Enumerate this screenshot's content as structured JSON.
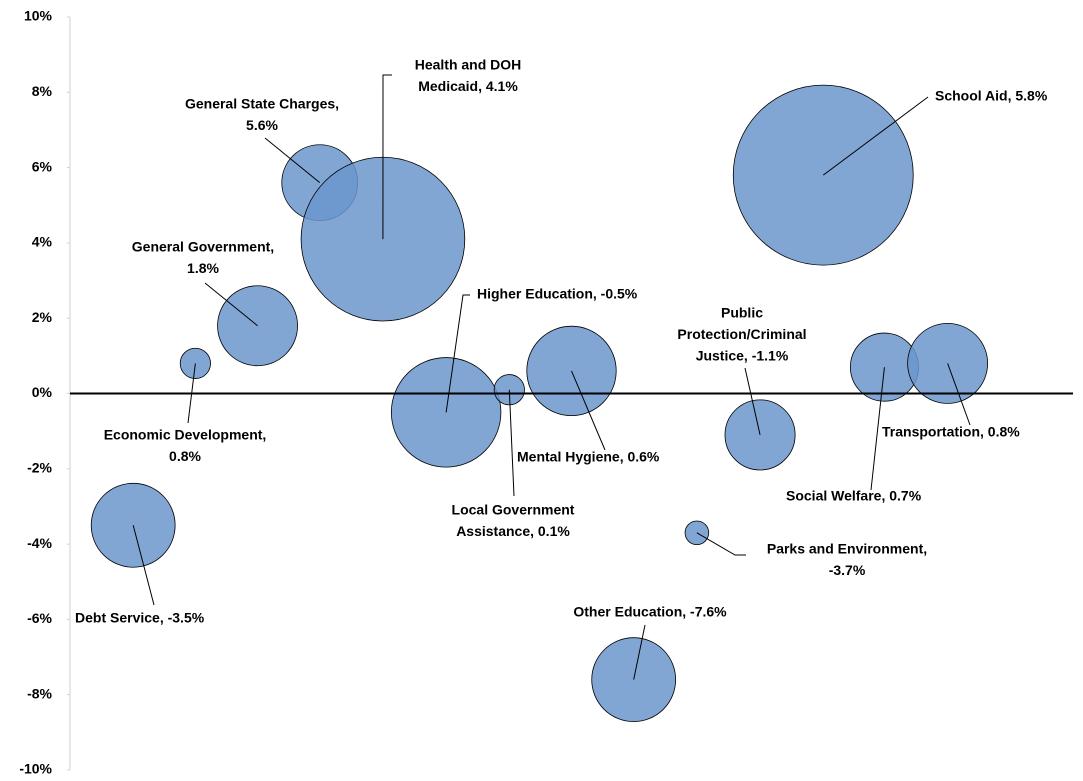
{
  "chart_data": {
    "type": "bubble",
    "color": "#6b96cc",
    "ylim": [
      -10,
      10
    ],
    "yticks": [
      {
        "value": -10,
        "label": "-10%"
      },
      {
        "value": -8,
        "label": "-8%"
      },
      {
        "value": -6,
        "label": "-6%"
      },
      {
        "value": -4,
        "label": "-4%"
      },
      {
        "value": -2,
        "label": "-2%"
      },
      {
        "value": 0,
        "label": "0%"
      },
      {
        "value": 2,
        "label": "2%"
      },
      {
        "value": 4,
        "label": "4%"
      },
      {
        "value": 6,
        "label": "6%"
      },
      {
        "value": 8,
        "label": "8%"
      },
      {
        "value": 10,
        "label": "10%"
      }
    ],
    "xlim": [
      0,
      100
    ],
    "x": [
      24.9,
      31.2,
      75.1,
      18.7,
      12.5,
      37.5,
      43.8,
      50.0,
      68.8,
      81.2,
      87.5,
      6.3,
      62.5,
      56.2
    ],
    "values": [
      5.6,
      4.1,
      5.8,
      1.8,
      0.8,
      -0.5,
      0.1,
      0.6,
      -1.1,
      0.7,
      0.8,
      -3.5,
      -3.7,
      -7.6
    ],
    "sizes": [
      14.4,
      67,
      81,
      16,
      2.3,
      30,
      2.3,
      20,
      12.3,
      11.6,
      16,
      17.6,
      1.4,
      17.6
    ],
    "labels": [
      [
        "General State Charges,",
        "5.6%"
      ],
      [
        "Health and DOH",
        "Medicaid, 4.1%"
      ],
      [
        "School Aid, 5.8%"
      ],
      [
        "General Government,",
        "1.8%"
      ],
      [
        "Economic Development,",
        "0.8%"
      ],
      [
        "Higher Education, -0.5%"
      ],
      [
        "Local Government",
        "Assistance, 0.1%"
      ],
      [
        "Mental Hygiene, 0.6%"
      ],
      [
        "Public",
        "Protection/Criminal",
        "Justice, -1.1%"
      ],
      [
        "Social Welfare, 0.7%"
      ],
      [
        "Transportation, 0.8%"
      ],
      [
        "Debt Service, -3.5%"
      ],
      [
        "Parks and Environment,",
        "-3.7%"
      ],
      [
        "Other Education, -7.6%"
      ]
    ]
  }
}
